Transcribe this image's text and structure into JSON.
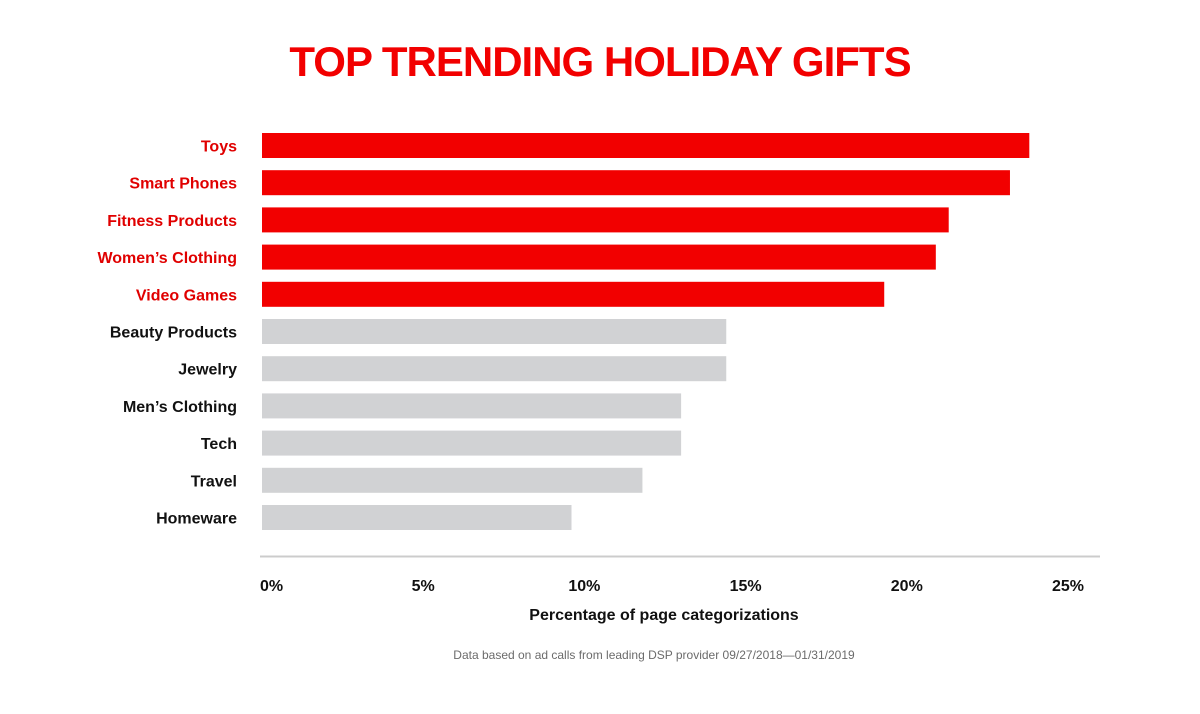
{
  "colors": {
    "highlight": "#f20000",
    "muted": "#d1d2d4",
    "highlight_text": "#e00000",
    "muted_text": "#111111",
    "axis_line": "#cccccc"
  },
  "chart_data": {
    "type": "bar",
    "orientation": "horizontal",
    "title": "TOP TRENDING HOLIDAY GIFTS",
    "xlabel": "Percentage of page categorizations",
    "ylabel": "",
    "footnote": "Data based on ad calls from leading DSP provider 09/27/2018—01/31/2019",
    "xlim": [
      0,
      26
    ],
    "x_ticks": [
      0,
      5,
      10,
      15,
      20,
      25
    ],
    "x_tick_labels": [
      "0%",
      "5%",
      "10%",
      "15%",
      "20%",
      "25%"
    ],
    "grid": false,
    "legend": "none",
    "categories": [
      "Toys",
      "Smart Phones",
      "Fitness Products",
      "Women’s Clothing",
      "Video Games",
      "Beauty Products",
      "Jewelry",
      "Men’s Clothing",
      "Tech",
      "Travel",
      "Homeware"
    ],
    "values": [
      23.8,
      23.2,
      21.3,
      20.9,
      19.3,
      14.4,
      14.4,
      13.0,
      13.0,
      11.8,
      9.6
    ],
    "highlighted": [
      true,
      true,
      true,
      true,
      true,
      false,
      false,
      false,
      false,
      false,
      false
    ]
  }
}
